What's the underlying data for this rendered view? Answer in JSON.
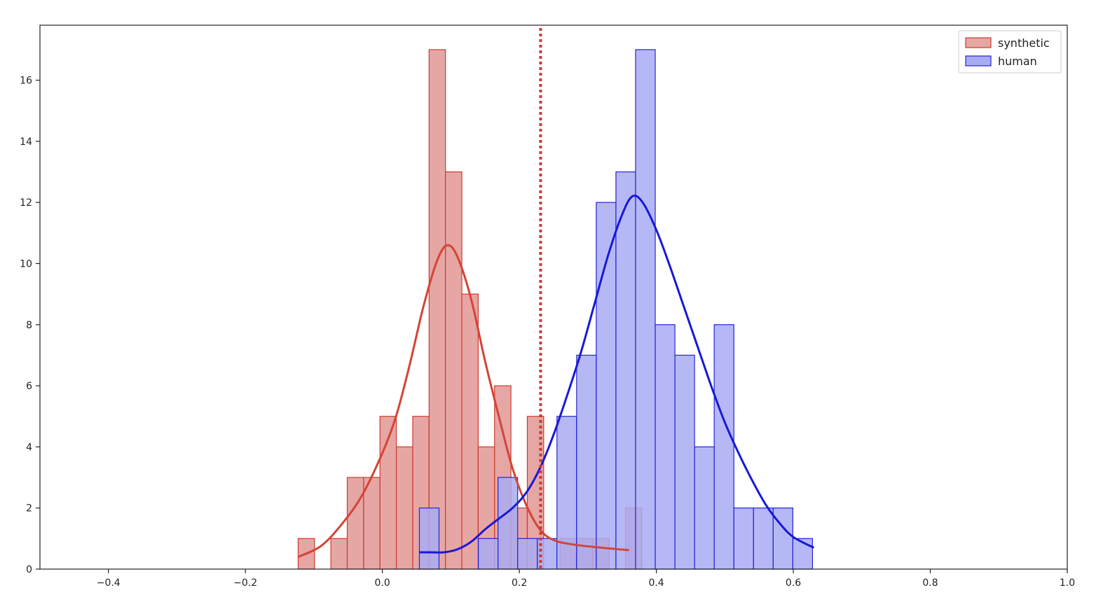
{
  "chart_data": {
    "type": "bar",
    "subtype": "histogram-with-kde",
    "title": "",
    "xlabel": "",
    "ylabel": "",
    "xlim": [
      -0.5,
      1.0
    ],
    "ylim": [
      0,
      17.8
    ],
    "grid": false,
    "legend_position": "top-right",
    "xticks": [
      -0.4,
      -0.2,
      0.0,
      0.2,
      0.4,
      0.6,
      0.8,
      1.0
    ],
    "xtick_labels": [
      "−0.4",
      "−0.2",
      "0.0",
      "0.2",
      "0.4",
      "0.6",
      "0.8",
      "1.0"
    ],
    "yticks": [
      0,
      2,
      4,
      6,
      8,
      10,
      12,
      14,
      16
    ],
    "ytick_labels": [
      "0",
      "2",
      "4",
      "6",
      "8",
      "10",
      "12",
      "14",
      "16"
    ],
    "threshold_line": {
      "x": 0.231,
      "color": "#cc3b2e",
      "style": "dotted"
    },
    "series": [
      {
        "name": "synthetic",
        "fill": "#e6a6a4",
        "edge": "#cc3b2e",
        "kde_color": "#d44436",
        "bin_start": -0.123,
        "bin_width": 0.0239,
        "values": [
          1,
          0,
          1,
          3,
          3,
          5,
          4,
          5,
          17,
          13,
          9,
          4,
          6,
          2,
          5,
          0,
          1,
          1,
          1,
          0,
          2
        ],
        "kde": [
          [
            -0.123,
            0.4
          ],
          [
            -0.09,
            0.75
          ],
          [
            -0.06,
            1.45
          ],
          [
            -0.03,
            2.4
          ],
          [
            0.0,
            3.8
          ],
          [
            0.02,
            5.0
          ],
          [
            0.04,
            6.7
          ],
          [
            0.06,
            8.6
          ],
          [
            0.08,
            10.1
          ],
          [
            0.095,
            10.6
          ],
          [
            0.11,
            10.2
          ],
          [
            0.13,
            8.8
          ],
          [
            0.15,
            6.8
          ],
          [
            0.17,
            5.0
          ],
          [
            0.19,
            3.3
          ],
          [
            0.21,
            2.1
          ],
          [
            0.23,
            1.3
          ],
          [
            0.25,
            0.95
          ],
          [
            0.28,
            0.8
          ],
          [
            0.32,
            0.7
          ],
          [
            0.36,
            0.62
          ]
        ]
      },
      {
        "name": "human",
        "fill": "#a9acf3",
        "edge": "#2424d8",
        "kde_color": "#1818d8",
        "bin_start": 0.054,
        "bin_width": 0.0287,
        "values": [
          2,
          0,
          0,
          1,
          3,
          1,
          1,
          5,
          7,
          12,
          13,
          17,
          8,
          7,
          4,
          8,
          2,
          2,
          2,
          1
        ],
        "kde": [
          [
            0.054,
            0.55
          ],
          [
            0.07,
            0.55
          ],
          [
            0.09,
            0.55
          ],
          [
            0.11,
            0.65
          ],
          [
            0.13,
            0.9
          ],
          [
            0.15,
            1.3
          ],
          [
            0.17,
            1.65
          ],
          [
            0.19,
            2.0
          ],
          [
            0.21,
            2.5
          ],
          [
            0.23,
            3.3
          ],
          [
            0.25,
            4.4
          ],
          [
            0.27,
            5.7
          ],
          [
            0.29,
            7.1
          ],
          [
            0.31,
            8.7
          ],
          [
            0.33,
            10.3
          ],
          [
            0.35,
            11.6
          ],
          [
            0.365,
            12.2
          ],
          [
            0.38,
            12.0
          ],
          [
            0.4,
            11.1
          ],
          [
            0.42,
            9.9
          ],
          [
            0.44,
            8.6
          ],
          [
            0.46,
            7.3
          ],
          [
            0.48,
            6.0
          ],
          [
            0.5,
            4.8
          ],
          [
            0.52,
            3.8
          ],
          [
            0.54,
            2.9
          ],
          [
            0.56,
            2.1
          ],
          [
            0.58,
            1.5
          ],
          [
            0.6,
            1.05
          ],
          [
            0.63,
            0.7
          ]
        ]
      }
    ]
  }
}
